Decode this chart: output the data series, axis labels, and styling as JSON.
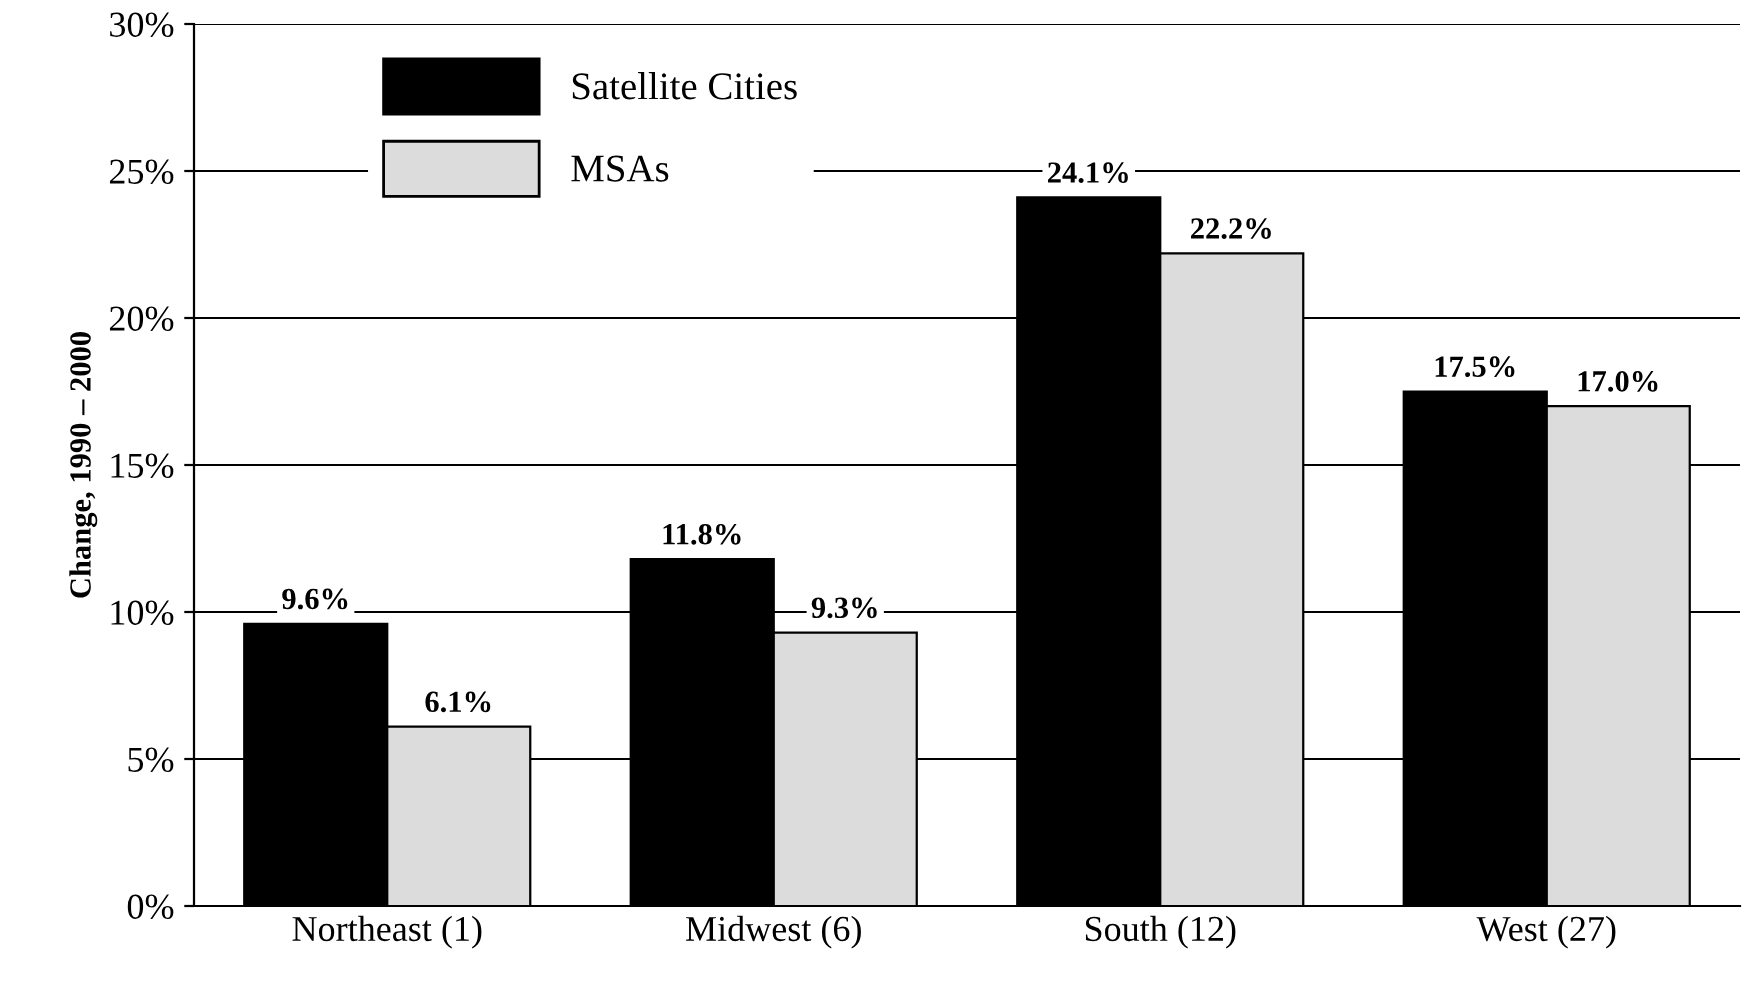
{
  "chart_data": {
    "type": "bar",
    "ylabel": "Change, 1990 – 2000",
    "categories": [
      "Northeast (1)",
      "Midwest (6)",
      "South (12)",
      "West (27)"
    ],
    "series": [
      {
        "name": "Satellite Cities",
        "color": "#000000",
        "values": [
          9.6,
          11.8,
          24.1,
          17.5
        ],
        "value_labels": [
          "9.6%",
          "11.8%",
          "24.1%",
          "17.5%"
        ]
      },
      {
        "name": "MSAs",
        "color": "#dcdcdc",
        "values": [
          6.1,
          9.3,
          22.2,
          17.0
        ],
        "value_labels": [
          "6.1%",
          "9.3%",
          "22.2%",
          "17.0%"
        ]
      }
    ],
    "ylim": [
      0,
      30
    ],
    "yticks": [
      {
        "value": 0,
        "label": "0%"
      },
      {
        "value": 5,
        "label": "5%"
      },
      {
        "value": 10,
        "label": "10%"
      },
      {
        "value": 15,
        "label": "15%"
      },
      {
        "value": 20,
        "label": "20%"
      },
      {
        "value": 25,
        "label": "25%"
      },
      {
        "value": 30,
        "label": "30%"
      }
    ],
    "grid": "y",
    "legend": "top left"
  }
}
